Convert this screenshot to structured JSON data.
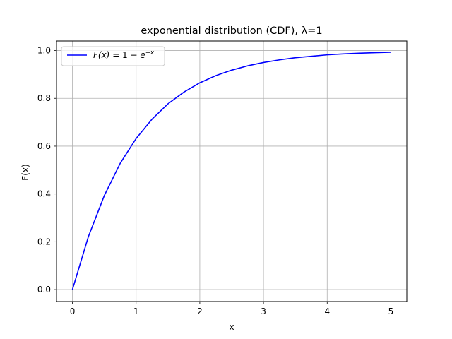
{
  "chart_data": {
    "type": "line",
    "title": "exponential distribution (CDF), λ=1",
    "xlabel": "x",
    "ylabel": "F(x)",
    "xlim": [
      -0.25,
      5.25
    ],
    "ylim": [
      -0.05,
      1.04
    ],
    "grid": true,
    "legend_position": "top-left",
    "x_ticks": [
      {
        "value": 0,
        "label": "0"
      },
      {
        "value": 1,
        "label": "1"
      },
      {
        "value": 2,
        "label": "2"
      },
      {
        "value": 3,
        "label": "3"
      },
      {
        "value": 4,
        "label": "4"
      },
      {
        "value": 5,
        "label": "5"
      }
    ],
    "y_ticks": [
      {
        "value": 0.0,
        "label": "0.0"
      },
      {
        "value": 0.2,
        "label": "0.2"
      },
      {
        "value": 0.4,
        "label": "0.4"
      },
      {
        "value": 0.6,
        "label": "0.6"
      },
      {
        "value": 0.8,
        "label": "0.8"
      },
      {
        "value": 1.0,
        "label": "1.0"
      }
    ],
    "series": [
      {
        "name": "F(x) = 1 − e^{−x}",
        "legend_parts": {
          "lhs": "F(x)",
          "eq": " = 1 − ",
          "base": "e",
          "exp": "−x"
        },
        "color": "#0000ff",
        "x": [
          0,
          0.25,
          0.5,
          0.75,
          1,
          1.25,
          1.5,
          1.75,
          2,
          2.25,
          2.5,
          2.75,
          3,
          3.25,
          3.5,
          3.75,
          4,
          4.25,
          4.5,
          4.75,
          5
        ],
        "y": [
          0.0,
          0.221,
          0.393,
          0.528,
          0.632,
          0.713,
          0.777,
          0.826,
          0.865,
          0.895,
          0.918,
          0.936,
          0.95,
          0.961,
          0.97,
          0.976,
          0.982,
          0.986,
          0.989,
          0.991,
          0.993
        ]
      }
    ]
  }
}
